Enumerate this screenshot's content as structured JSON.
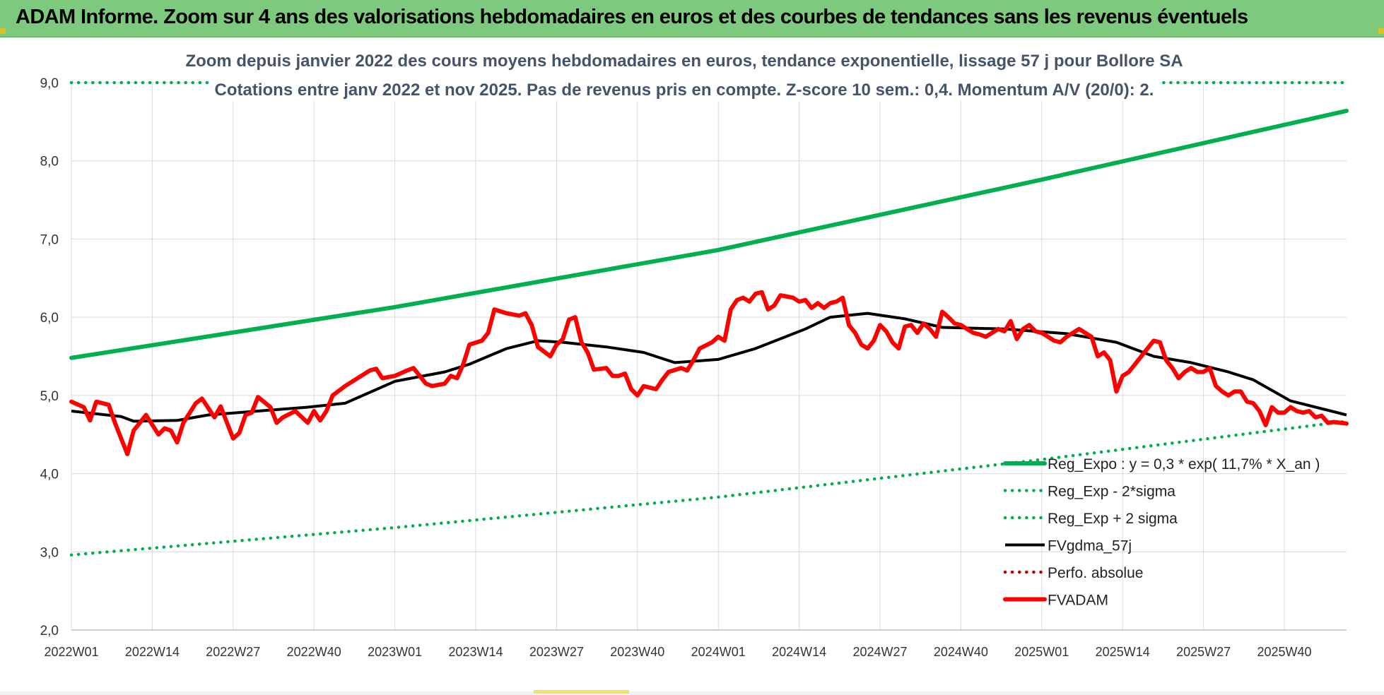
{
  "header": {
    "title": "ADAM Informe. Zoom sur 4 ans des valorisations hebdomadaires en euros et des courbes de tendances sans les revenus éventuels"
  },
  "colors": {
    "banner": "#7dc97d",
    "reg_expo": "#00b050",
    "fvgdma": "#000000",
    "fvadam": "#ff0000",
    "perfo": "#c00000",
    "grid": "#d9d9d9"
  },
  "chart_data": {
    "type": "line",
    "title": "Zoom depuis janvier 2022 des cours moyens hebdomadaires en euros, tendance exponentielle, lissage 57 j pour Bollore SA",
    "subtitle": "Cotations entre janv 2022 et nov 2025. Pas de revenus pris en compte. Z-score 10 sem.: 0,4. Momentum A/V (20/0): 2.",
    "ylim": [
      2.0,
      9.0
    ],
    "yticks": [
      "2,0",
      "3,0",
      "4,0",
      "5,0",
      "6,0",
      "7,0",
      "8,0",
      "9,0"
    ],
    "xticks": [
      "2022W01",
      "2022W14",
      "2022W27",
      "2022W40",
      "2023W01",
      "2023W14",
      "2023W27",
      "2023W40",
      "2024W01",
      "2024W14",
      "2024W27",
      "2024W40",
      "2025W01",
      "2025W14",
      "2025W27",
      "2025W40"
    ],
    "n_weeks": 206,
    "legend_position": "bottom-right",
    "series": [
      {
        "name": "Reg_Expo : y = 0,3 * exp( 11,7% *  X_an )",
        "style": "solid-thick",
        "color": "#00b050",
        "points": [
          [
            0,
            5.48
          ],
          [
            52,
            6.13
          ],
          [
            104,
            6.86
          ],
          [
            156,
            7.76
          ],
          [
            205,
            8.64
          ]
        ]
      },
      {
        "name": "Reg_Exp - 2*sigma",
        "style": "dotted",
        "color": "#00b050",
        "points": [
          [
            0,
            2.96
          ],
          [
            52,
            3.31
          ],
          [
            104,
            3.7
          ],
          [
            156,
            4.18
          ],
          [
            205,
            4.67
          ]
        ]
      },
      {
        "name": "Reg_Exp + 2 sigma",
        "style": "dotted",
        "color": "#00b050",
        "points": [
          [
            0,
            9.0
          ],
          [
            205,
            9.0
          ]
        ]
      },
      {
        "name": "FVgdma_57j",
        "style": "solid",
        "color": "#000000",
        "points": [
          [
            0,
            4.8
          ],
          [
            8,
            4.73
          ],
          [
            10,
            4.67
          ],
          [
            17,
            4.68
          ],
          [
            22,
            4.75
          ],
          [
            30,
            4.8
          ],
          [
            38,
            4.85
          ],
          [
            44,
            4.9
          ],
          [
            52,
            5.18
          ],
          [
            60,
            5.3
          ],
          [
            64,
            5.4
          ],
          [
            70,
            5.6
          ],
          [
            75,
            5.7
          ],
          [
            79,
            5.68
          ],
          [
            86,
            5.62
          ],
          [
            92,
            5.55
          ],
          [
            97,
            5.42
          ],
          [
            104,
            5.46
          ],
          [
            110,
            5.6
          ],
          [
            118,
            5.85
          ],
          [
            122,
            6.0
          ],
          [
            128,
            6.05
          ],
          [
            134,
            5.98
          ],
          [
            140,
            5.87
          ],
          [
            150,
            5.85
          ],
          [
            160,
            5.79
          ],
          [
            168,
            5.68
          ],
          [
            174,
            5.5
          ],
          [
            180,
            5.42
          ],
          [
            186,
            5.3
          ],
          [
            190,
            5.2
          ],
          [
            196,
            4.93
          ],
          [
            205,
            4.75
          ]
        ]
      },
      {
        "name": "Perfo. absolue",
        "style": "dotted",
        "color": "#c00000",
        "points": []
      },
      {
        "name": "FVADAM",
        "style": "solid-thick",
        "color": "#ff0000",
        "points": [
          [
            0,
            4.92
          ],
          [
            2,
            4.85
          ],
          [
            3,
            4.68
          ],
          [
            4,
            4.92
          ],
          [
            6,
            4.88
          ],
          [
            7,
            4.65
          ],
          [
            8,
            4.45
          ],
          [
            9,
            4.25
          ],
          [
            10,
            4.55
          ],
          [
            12,
            4.75
          ],
          [
            14,
            4.5
          ],
          [
            15,
            4.58
          ],
          [
            16,
            4.55
          ],
          [
            17,
            4.4
          ],
          [
            18,
            4.65
          ],
          [
            20,
            4.9
          ],
          [
            21,
            4.96
          ],
          [
            23,
            4.72
          ],
          [
            24,
            4.86
          ],
          [
            26,
            4.45
          ],
          [
            27,
            4.52
          ],
          [
            28,
            4.75
          ],
          [
            29,
            4.78
          ],
          [
            30,
            4.98
          ],
          [
            32,
            4.85
          ],
          [
            33,
            4.65
          ],
          [
            34,
            4.72
          ],
          [
            36,
            4.8
          ],
          [
            38,
            4.65
          ],
          [
            39,
            4.8
          ],
          [
            40,
            4.68
          ],
          [
            41,
            4.8
          ],
          [
            42,
            5.0
          ],
          [
            44,
            5.12
          ],
          [
            46,
            5.22
          ],
          [
            48,
            5.32
          ],
          [
            49,
            5.34
          ],
          [
            50,
            5.22
          ],
          [
            52,
            5.25
          ],
          [
            54,
            5.32
          ],
          [
            55,
            5.35
          ],
          [
            57,
            5.15
          ],
          [
            58,
            5.12
          ],
          [
            60,
            5.15
          ],
          [
            61,
            5.25
          ],
          [
            62,
            5.22
          ],
          [
            63,
            5.4
          ],
          [
            64,
            5.65
          ],
          [
            66,
            5.7
          ],
          [
            67,
            5.8
          ],
          [
            68,
            6.1
          ],
          [
            70,
            6.05
          ],
          [
            72,
            6.02
          ],
          [
            73,
            6.05
          ],
          [
            74,
            5.9
          ],
          [
            75,
            5.62
          ],
          [
            77,
            5.5
          ],
          [
            78,
            5.65
          ],
          [
            79,
            5.72
          ],
          [
            80,
            5.97
          ],
          [
            81,
            6.0
          ],
          [
            82,
            5.68
          ],
          [
            83,
            5.55
          ],
          [
            84,
            5.33
          ],
          [
            86,
            5.35
          ],
          [
            87,
            5.25
          ],
          [
            88,
            5.25
          ],
          [
            89,
            5.28
          ],
          [
            90,
            5.08
          ],
          [
            91,
            5.0
          ],
          [
            92,
            5.12
          ],
          [
            94,
            5.08
          ],
          [
            95,
            5.2
          ],
          [
            96,
            5.3
          ],
          [
            98,
            5.35
          ],
          [
            99,
            5.32
          ],
          [
            100,
            5.45
          ],
          [
            101,
            5.6
          ],
          [
            103,
            5.68
          ],
          [
            104,
            5.75
          ],
          [
            105,
            5.7
          ],
          [
            106,
            6.1
          ],
          [
            107,
            6.22
          ],
          [
            108,
            6.25
          ],
          [
            109,
            6.2
          ],
          [
            110,
            6.3
          ],
          [
            111,
            6.32
          ],
          [
            112,
            6.1
          ],
          [
            113,
            6.15
          ],
          [
            114,
            6.28
          ],
          [
            116,
            6.25
          ],
          [
            117,
            6.2
          ],
          [
            118,
            6.22
          ],
          [
            119,
            6.12
          ],
          [
            120,
            6.18
          ],
          [
            121,
            6.12
          ],
          [
            122,
            6.18
          ],
          [
            123,
            6.2
          ],
          [
            124,
            6.25
          ],
          [
            125,
            5.9
          ],
          [
            126,
            5.8
          ],
          [
            127,
            5.65
          ],
          [
            128,
            5.6
          ],
          [
            129,
            5.7
          ],
          [
            130,
            5.9
          ],
          [
            131,
            5.82
          ],
          [
            132,
            5.68
          ],
          [
            133,
            5.6
          ],
          [
            134,
            5.88
          ],
          [
            135,
            5.9
          ],
          [
            136,
            5.8
          ],
          [
            137,
            5.92
          ],
          [
            138,
            5.85
          ],
          [
            139,
            5.75
          ],
          [
            140,
            6.07
          ],
          [
            141,
            6.0
          ],
          [
            142,
            5.92
          ],
          [
            143,
            5.9
          ],
          [
            144,
            5.85
          ],
          [
            145,
            5.8
          ],
          [
            146,
            5.78
          ],
          [
            147,
            5.75
          ],
          [
            148,
            5.8
          ],
          [
            149,
            5.85
          ],
          [
            150,
            5.82
          ],
          [
            151,
            5.95
          ],
          [
            152,
            5.72
          ],
          [
            153,
            5.85
          ],
          [
            154,
            5.9
          ],
          [
            155,
            5.82
          ],
          [
            156,
            5.8
          ],
          [
            157,
            5.75
          ],
          [
            158,
            5.7
          ],
          [
            159,
            5.68
          ],
          [
            160,
            5.75
          ],
          [
            161,
            5.8
          ],
          [
            162,
            5.85
          ],
          [
            163,
            5.8
          ],
          [
            164,
            5.75
          ],
          [
            165,
            5.5
          ],
          [
            166,
            5.55
          ],
          [
            167,
            5.45
          ],
          [
            168,
            5.05
          ],
          [
            169,
            5.25
          ],
          [
            170,
            5.3
          ],
          [
            171,
            5.4
          ],
          [
            172,
            5.5
          ],
          [
            173,
            5.6
          ],
          [
            174,
            5.7
          ],
          [
            175,
            5.68
          ],
          [
            176,
            5.45
          ],
          [
            177,
            5.35
          ],
          [
            178,
            5.22
          ],
          [
            179,
            5.3
          ],
          [
            180,
            5.35
          ],
          [
            181,
            5.3
          ],
          [
            182,
            5.3
          ],
          [
            183,
            5.35
          ],
          [
            184,
            5.12
          ],
          [
            185,
            5.05
          ],
          [
            186,
            5.0
          ],
          [
            187,
            5.05
          ],
          [
            188,
            5.05
          ],
          [
            189,
            4.92
          ],
          [
            190,
            4.9
          ],
          [
            191,
            4.8
          ],
          [
            192,
            4.62
          ],
          [
            193,
            4.85
          ],
          [
            194,
            4.78
          ],
          [
            195,
            4.78
          ],
          [
            196,
            4.85
          ],
          [
            197,
            4.8
          ],
          [
            198,
            4.78
          ],
          [
            199,
            4.8
          ],
          [
            200,
            4.72
          ],
          [
            201,
            4.74
          ],
          [
            202,
            4.65
          ],
          [
            203,
            4.66
          ],
          [
            205,
            4.64
          ]
        ]
      }
    ]
  }
}
